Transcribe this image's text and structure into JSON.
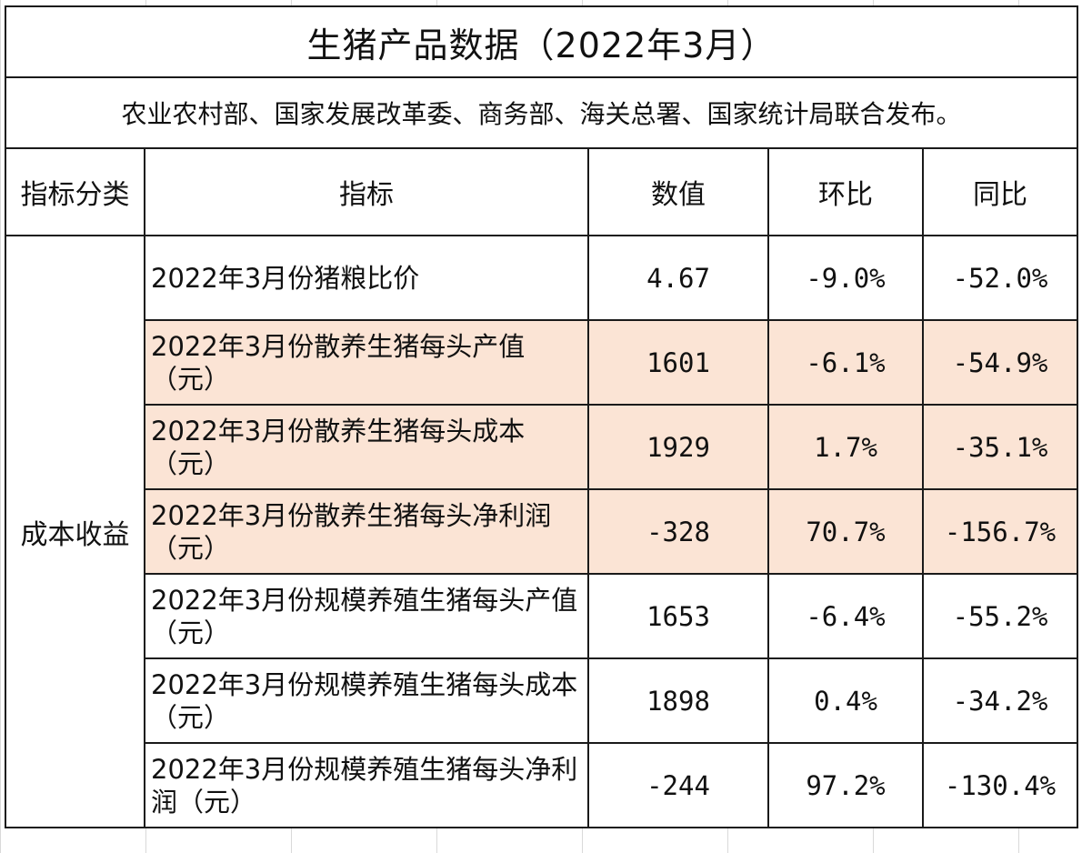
{
  "title": "生猪产品数据（2022年3月）",
  "subtitle": "农业农村部、国家发展改革委、商务部、海关总署、国家统计局联合发布。",
  "headers": {
    "category": "指标分类",
    "indicator": "指标",
    "value": "数值",
    "mom": "环比",
    "yoy": "同比"
  },
  "category": "成本收益",
  "rows": [
    {
      "indicator": "2022年3月份猪粮比价",
      "value": "4.67",
      "mom": "-9.0%",
      "yoy": "-52.0%",
      "highlight": false
    },
    {
      "indicator": "2022年3月份散养生猪每头产值（元）",
      "value": "1601",
      "mom": "-6.1%",
      "yoy": "-54.9%",
      "highlight": true
    },
    {
      "indicator": "2022年3月份散养生猪每头成本（元）",
      "value": "1929",
      "mom": "1.7%",
      "yoy": "-35.1%",
      "highlight": true
    },
    {
      "indicator": "2022年3月份散养生猪每头净利润（元）",
      "value": "-328",
      "mom": "70.7%",
      "yoy": "-156.7%",
      "highlight": true
    },
    {
      "indicator": "2022年3月份规模养殖生猪每头产值（元）",
      "value": "1653",
      "mom": "-6.4%",
      "yoy": "-55.2%",
      "highlight": false
    },
    {
      "indicator": "2022年3月份规模养殖生猪每头成本（元）",
      "value": "1898",
      "mom": "0.4%",
      "yoy": "-34.2%",
      "highlight": false
    },
    {
      "indicator": "2022年3月份规模养殖生猪每头净利润（元）",
      "value": "-244",
      "mom": "97.2%",
      "yoy": "-130.4%",
      "highlight": false
    }
  ],
  "colors": {
    "highlight_fill": "#fbe4d5",
    "border": "#1a1a1a"
  }
}
